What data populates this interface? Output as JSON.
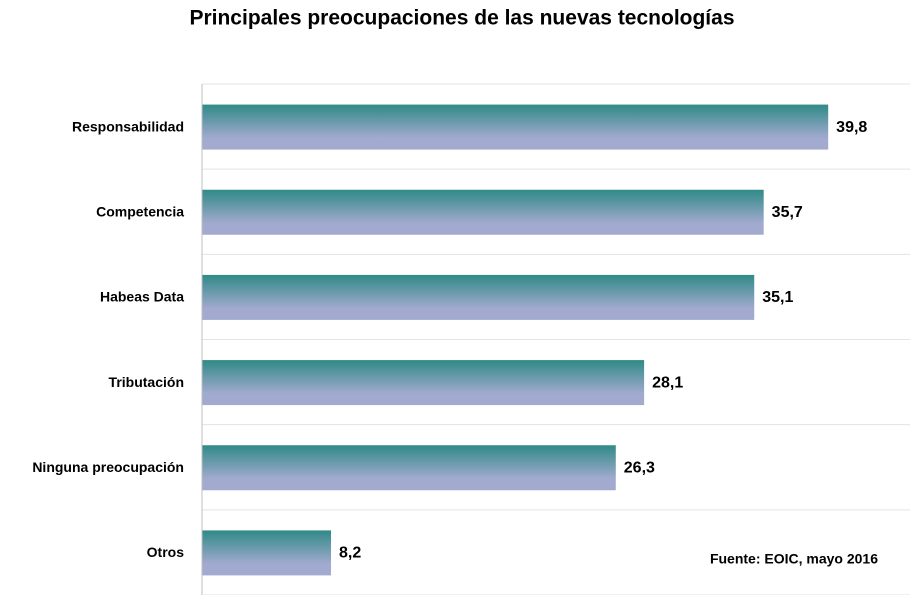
{
  "chart_data": {
    "type": "hbar",
    "title": "Principales preocupaciones de las nuevas tecnologías",
    "categories": [
      "Responsabilidad",
      "Competencia",
      "Habeas Data",
      "Tributación",
      "Ninguna preocupación",
      "Otros"
    ],
    "values": [
      39.8,
      35.7,
      35.1,
      28.1,
      26.3,
      8.2
    ],
    "value_labels": [
      "39,8",
      "35,7",
      "35,1",
      "28,1",
      "26,3",
      "8,2"
    ],
    "color": "#2f8a87",
    "gradient_to": "#a3aacf",
    "xlim": [
      0,
      45
    ],
    "annotation": "Fuente: EOIC, mayo 2016"
  }
}
